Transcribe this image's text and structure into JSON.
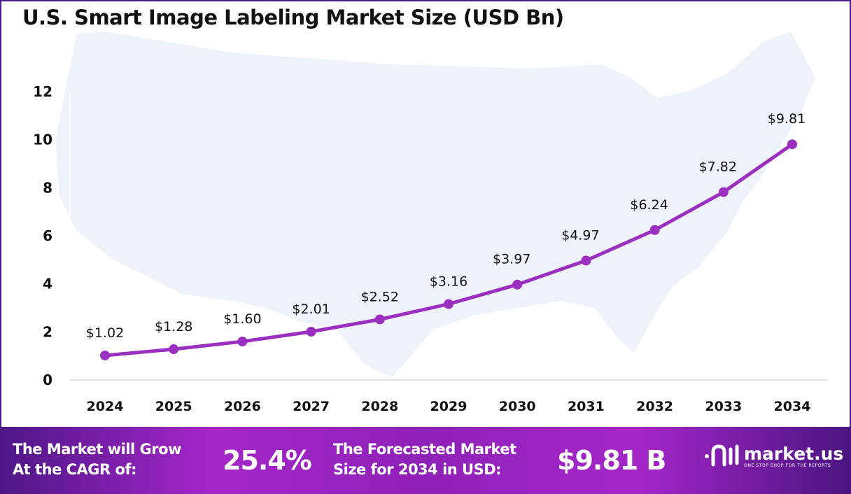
{
  "chart_data": {
    "type": "line",
    "title": "U.S. Smart Image Labeling Market Size (USD Bn)",
    "categories": [
      "2024",
      "2025",
      "2026",
      "2027",
      "2028",
      "2029",
      "2030",
      "2031",
      "2032",
      "2033",
      "2034"
    ],
    "values": [
      1.02,
      1.28,
      1.6,
      2.01,
      2.52,
      3.16,
      3.97,
      4.97,
      6.24,
      7.82,
      9.81
    ],
    "data_labels": [
      "$1.02",
      "$1.28",
      "$1.60",
      "$2.01",
      "$2.52",
      "$3.16",
      "$3.97",
      "$4.97",
      "$6.24",
      "$7.82",
      "$9.81"
    ],
    "ylim": [
      0,
      12
    ],
    "yticks": [
      "0",
      "2",
      "4",
      "6",
      "8",
      "10",
      "12"
    ],
    "grid": false,
    "line_color": "#9b30c0",
    "background": "us-map-silhouette"
  },
  "footer": {
    "cagr_text_line1": "The Market will Grow",
    "cagr_text_line2": "At the CAGR of:",
    "cagr_value": "25.4%",
    "forecast_text_line1": "The Forecasted Market",
    "forecast_text_line2": "Size for 2034 in USD:",
    "forecast_value": "$9.81 B",
    "logo_name": "market.us",
    "logo_tagline": "ONE STOP SHOP FOR THE REPORTS"
  }
}
